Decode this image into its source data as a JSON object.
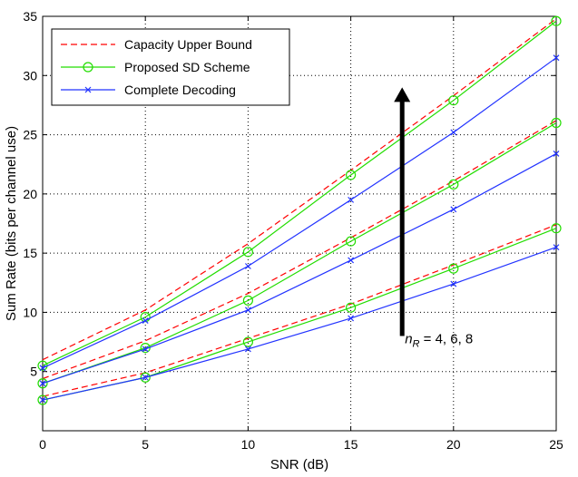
{
  "chart_data": {
    "type": "line",
    "title": "",
    "xlabel": "SNR (dB)",
    "ylabel": "Sum Rate (bits per channel use)",
    "xlim": [
      0,
      25
    ],
    "ylim": [
      0,
      35
    ],
    "xticks": [
      0,
      5,
      10,
      15,
      20,
      25
    ],
    "yticks": [
      5,
      10,
      15,
      20,
      25,
      30,
      35
    ],
    "grid": true,
    "legend_position": "top-left",
    "x": [
      0,
      5,
      10,
      15,
      20,
      25
    ],
    "series": [
      {
        "name": "Capacity Upper Bound",
        "group": "nR=8",
        "values": [
          6.0,
          10.2,
          15.8,
          22.0,
          28.3,
          34.8
        ]
      },
      {
        "name": "Proposed SD Scheme",
        "group": "nR=8",
        "values": [
          5.5,
          9.6,
          15.1,
          21.6,
          27.9,
          34.6
        ]
      },
      {
        "name": "Complete Decoding",
        "group": "nR=8",
        "values": [
          5.3,
          9.3,
          13.9,
          19.5,
          25.2,
          31.5
        ]
      },
      {
        "name": "Capacity Upper Bound",
        "group": "nR=6",
        "values": [
          4.4,
          7.6,
          11.6,
          16.3,
          21.1,
          26.2
        ]
      },
      {
        "name": "Proposed SD Scheme",
        "group": "nR=6",
        "values": [
          4.0,
          7.0,
          11.0,
          16.0,
          20.8,
          26.0
        ]
      },
      {
        "name": "Complete Decoding",
        "group": "nR=6",
        "values": [
          4.0,
          6.9,
          10.2,
          14.4,
          18.7,
          23.4
        ]
      },
      {
        "name": "Capacity Upper Bound",
        "group": "nR=4",
        "values": [
          2.9,
          4.9,
          7.8,
          10.7,
          14.0,
          17.4
        ]
      },
      {
        "name": "Proposed SD Scheme",
        "group": "nR=4",
        "values": [
          2.6,
          4.5,
          7.5,
          10.4,
          13.7,
          17.1
        ]
      },
      {
        "name": "Complete Decoding",
        "group": "nR=4",
        "values": [
          2.6,
          4.5,
          6.9,
          9.5,
          12.4,
          15.5
        ]
      }
    ],
    "legend": [
      {
        "label": "Capacity Upper Bound",
        "color": "#ff0000",
        "style": "dashed",
        "marker": "none"
      },
      {
        "label": "Proposed SD Scheme",
        "color": "#22dd00",
        "style": "solid",
        "marker": "circle"
      },
      {
        "label": "Complete Decoding",
        "color": "#2233ff",
        "style": "solid",
        "marker": "x"
      }
    ],
    "annotation": {
      "prefix": "n",
      "subscript": "R",
      "text": " = 4, 6, 8",
      "arrow_from": [
        17.5,
        8.0
      ],
      "arrow_to": [
        17.5,
        29.0
      ]
    }
  }
}
